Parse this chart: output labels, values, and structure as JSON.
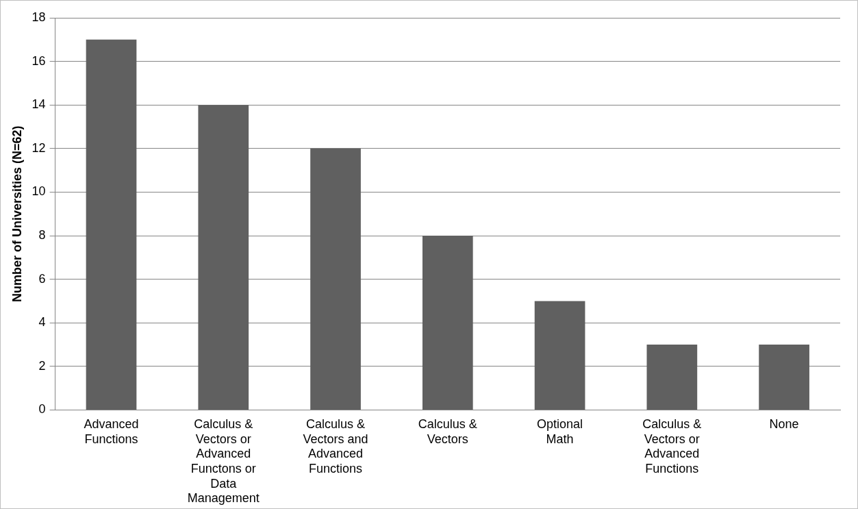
{
  "chart_data": {
    "type": "bar",
    "ylabel": "Number of Universities (N=62)",
    "categories": [
      "Advanced Functions",
      "Calculus & Vectors or Advanced Functons or Data Management",
      "Calculus & Vectors and Advanced Functions",
      "Calculus & Vectors",
      "Optional Math",
      "Calculus & Vectors or Advanced Functions",
      "None"
    ],
    "values": [
      17,
      14,
      12,
      8,
      5,
      3,
      3
    ],
    "color": "#606060",
    "ylim": [
      0,
      18
    ],
    "yticks": [
      0,
      2,
      4,
      6,
      8,
      10,
      12,
      14,
      16,
      18
    ],
    "grid": "y",
    "legend": false
  }
}
